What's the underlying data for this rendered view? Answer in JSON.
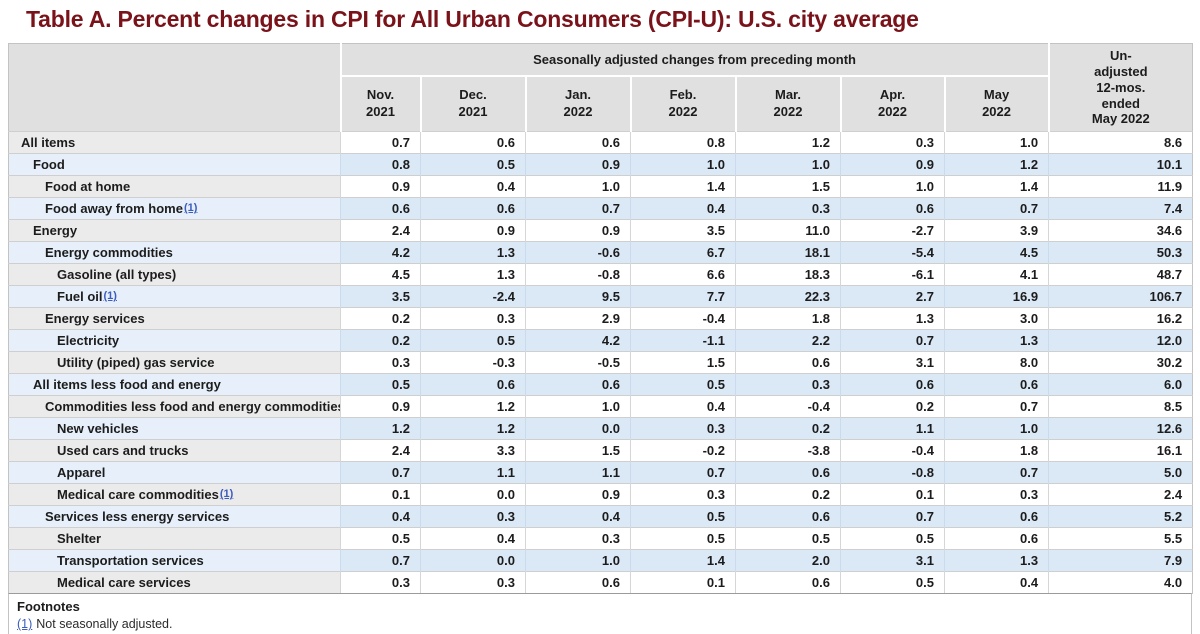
{
  "colors": {
    "title": "#7a121a",
    "header_bg": "#e0e0e0",
    "plain_label_bg": "#ebebeb",
    "blue_label_bg": "#e6effa",
    "blue_cell_bg": "#dbe8f6",
    "link": "#3a5dbe"
  },
  "chart_data": {
    "type": "table",
    "title": "Table A. Percent changes in CPI for All Urban Consumers (CPI-U): U.S. city average",
    "column_group_header": "Seasonally adjusted changes from preceding month",
    "month_headers": [
      {
        "line1": "Nov.",
        "line2": "2021"
      },
      {
        "line1": "Dec.",
        "line2": "2021"
      },
      {
        "line1": "Jan.",
        "line2": "2022"
      },
      {
        "line1": "Feb.",
        "line2": "2022"
      },
      {
        "line1": "Mar.",
        "line2": "2022"
      },
      {
        "line1": "Apr.",
        "line2": "2022"
      },
      {
        "line1": "May",
        "line2": "2022"
      }
    ],
    "unadjusted_header_lines": [
      "Un-",
      "adjusted",
      "12-mos.",
      "ended",
      "May 2022"
    ],
    "columns": [
      "Nov. 2021",
      "Dec. 2021",
      "Jan. 2022",
      "Feb. 2022",
      "Mar. 2022",
      "Apr. 2022",
      "May 2022",
      "Un-adjusted 12-mos. ended May 2022"
    ],
    "rows": [
      {
        "label": "All items",
        "indent": 0,
        "footnote_marker": null,
        "values": [
          "0.7",
          "0.6",
          "0.6",
          "0.8",
          "1.2",
          "0.3",
          "1.0",
          "8.6"
        ]
      },
      {
        "label": "Food",
        "indent": 1,
        "footnote_marker": null,
        "values": [
          "0.8",
          "0.5",
          "0.9",
          "1.0",
          "1.0",
          "0.9",
          "1.2",
          "10.1"
        ]
      },
      {
        "label": "Food at home",
        "indent": 2,
        "footnote_marker": null,
        "values": [
          "0.9",
          "0.4",
          "1.0",
          "1.4",
          "1.5",
          "1.0",
          "1.4",
          "11.9"
        ]
      },
      {
        "label": "Food away from home",
        "indent": 2,
        "footnote_marker": "(1)",
        "values": [
          "0.6",
          "0.6",
          "0.7",
          "0.4",
          "0.3",
          "0.6",
          "0.7",
          "7.4"
        ]
      },
      {
        "label": "Energy",
        "indent": 1,
        "footnote_marker": null,
        "values": [
          "2.4",
          "0.9",
          "0.9",
          "3.5",
          "11.0",
          "-2.7",
          "3.9",
          "34.6"
        ]
      },
      {
        "label": "Energy commodities",
        "indent": 2,
        "footnote_marker": null,
        "values": [
          "4.2",
          "1.3",
          "-0.6",
          "6.7",
          "18.1",
          "-5.4",
          "4.5",
          "50.3"
        ]
      },
      {
        "label": "Gasoline (all types)",
        "indent": 3,
        "footnote_marker": null,
        "values": [
          "4.5",
          "1.3",
          "-0.8",
          "6.6",
          "18.3",
          "-6.1",
          "4.1",
          "48.7"
        ]
      },
      {
        "label": "Fuel oil",
        "indent": 3,
        "footnote_marker": "(1)",
        "values": [
          "3.5",
          "-2.4",
          "9.5",
          "7.7",
          "22.3",
          "2.7",
          "16.9",
          "106.7"
        ]
      },
      {
        "label": "Energy services",
        "indent": 2,
        "footnote_marker": null,
        "values": [
          "0.2",
          "0.3",
          "2.9",
          "-0.4",
          "1.8",
          "1.3",
          "3.0",
          "16.2"
        ]
      },
      {
        "label": "Electricity",
        "indent": 3,
        "footnote_marker": null,
        "values": [
          "0.2",
          "0.5",
          "4.2",
          "-1.1",
          "2.2",
          "0.7",
          "1.3",
          "12.0"
        ]
      },
      {
        "label": "Utility (piped) gas service",
        "indent": 3,
        "footnote_marker": null,
        "values": [
          "0.3",
          "-0.3",
          "-0.5",
          "1.5",
          "0.6",
          "3.1",
          "8.0",
          "30.2"
        ]
      },
      {
        "label": "All items less food and energy",
        "indent": 1,
        "footnote_marker": null,
        "values": [
          "0.5",
          "0.6",
          "0.6",
          "0.5",
          "0.3",
          "0.6",
          "0.6",
          "6.0"
        ]
      },
      {
        "label": "Commodities less food and energy commodities",
        "indent": 2,
        "footnote_marker": null,
        "values": [
          "0.9",
          "1.2",
          "1.0",
          "0.4",
          "-0.4",
          "0.2",
          "0.7",
          "8.5"
        ]
      },
      {
        "label": "New vehicles",
        "indent": 3,
        "footnote_marker": null,
        "values": [
          "1.2",
          "1.2",
          "0.0",
          "0.3",
          "0.2",
          "1.1",
          "1.0",
          "12.6"
        ]
      },
      {
        "label": "Used cars and trucks",
        "indent": 3,
        "footnote_marker": null,
        "values": [
          "2.4",
          "3.3",
          "1.5",
          "-0.2",
          "-3.8",
          "-0.4",
          "1.8",
          "16.1"
        ]
      },
      {
        "label": "Apparel",
        "indent": 3,
        "footnote_marker": null,
        "values": [
          "0.7",
          "1.1",
          "1.1",
          "0.7",
          "0.6",
          "-0.8",
          "0.7",
          "5.0"
        ]
      },
      {
        "label": "Medical care commodities",
        "indent": 3,
        "footnote_marker": "(1)",
        "values": [
          "0.1",
          "0.0",
          "0.9",
          "0.3",
          "0.2",
          "0.1",
          "0.3",
          "2.4"
        ]
      },
      {
        "label": "Services less energy services",
        "indent": 2,
        "footnote_marker": null,
        "values": [
          "0.4",
          "0.3",
          "0.4",
          "0.5",
          "0.6",
          "0.7",
          "0.6",
          "5.2"
        ]
      },
      {
        "label": "Shelter",
        "indent": 3,
        "footnote_marker": null,
        "values": [
          "0.5",
          "0.4",
          "0.3",
          "0.5",
          "0.5",
          "0.5",
          "0.6",
          "5.5"
        ]
      },
      {
        "label": "Transportation services",
        "indent": 3,
        "footnote_marker": null,
        "values": [
          "0.7",
          "0.0",
          "1.0",
          "1.4",
          "2.0",
          "3.1",
          "1.3",
          "7.9"
        ]
      },
      {
        "label": "Medical care services",
        "indent": 3,
        "footnote_marker": null,
        "values": [
          "0.3",
          "0.3",
          "0.6",
          "0.1",
          "0.6",
          "0.5",
          "0.4",
          "4.0"
        ]
      }
    ],
    "footnotes": {
      "heading": "Footnotes",
      "items": [
        {
          "marker": "(1)",
          "text": "Not seasonally adjusted."
        }
      ]
    }
  }
}
